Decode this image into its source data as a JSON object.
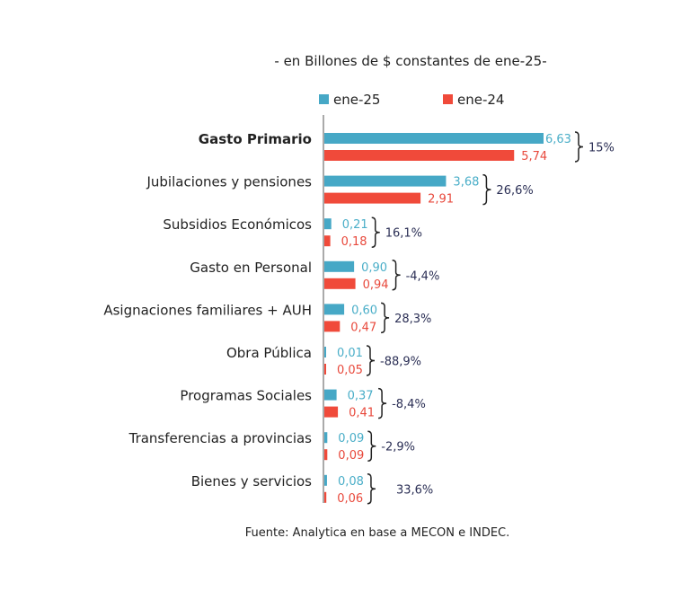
{
  "chart_data": {
    "type": "bar",
    "orientation": "horizontal",
    "subtitle": "- en Billones de $ constantes de ene-25-",
    "source": "Fuente: Analytica en base a MECON e INDEC.",
    "legend_position": "top",
    "grid": false,
    "colors": {
      "ene-25": "#46a8c6",
      "ene-24": "#f04a3a",
      "change": "#2b2f55"
    },
    "categories": [
      "Gasto Primario",
      "Jubilaciones y pensiones",
      "Subsidios Económicos",
      "Gasto en Personal",
      "Asignaciones familiares + AUH",
      "Obra Pública",
      "Programas Sociales",
      "Transferencias a provincias",
      "Bienes y servicios"
    ],
    "series": [
      {
        "name": "ene-25",
        "values": [
          6.63,
          3.68,
          0.21,
          0.9,
          0.6,
          0.01,
          0.37,
          0.09,
          0.08
        ],
        "labels": [
          "6,63",
          "3,68",
          "0,21",
          "0,90",
          "0,60",
          "0,01",
          "0,37",
          "0,09",
          "0,08"
        ]
      },
      {
        "name": "ene-24",
        "values": [
          5.74,
          2.91,
          0.18,
          0.94,
          0.47,
          0.05,
          0.41,
          0.09,
          0.06
        ],
        "labels": [
          "5,74",
          "2,91",
          "0,18",
          "0,94",
          "0,47",
          "0,05",
          "0,41",
          "0,09",
          "0,06"
        ]
      }
    ],
    "change_labels": [
      "15%",
      "26,6%",
      "16,1%",
      "-4,4%",
      "28,3%",
      "-88,9%",
      "-8,4%",
      "-2,9%",
      "33,6%"
    ]
  }
}
